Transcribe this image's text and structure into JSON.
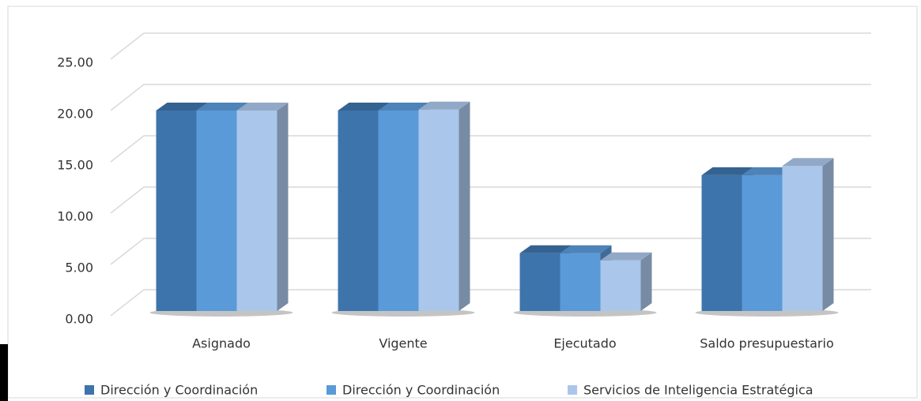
{
  "chart_data": {
    "type": "bar3d",
    "categories": [
      "Asignado",
      "Vigente",
      "Ejecutado",
      "Saldo presupuestario"
    ],
    "series": [
      {
        "name": "Dirección y Coordinación",
        "color": "#3d74ac",
        "values": [
          20.0,
          20.0,
          6.1,
          13.7
        ]
      },
      {
        "name": "Dirección y Coordinación",
        "color": "#5a9ad8",
        "values": [
          20.0,
          20.0,
          6.1,
          13.7
        ]
      },
      {
        "name": "Servicios de Inteligencia Estratégica",
        "color": "#aac6ea",
        "values": [
          20.0,
          20.1,
          5.4,
          14.6
        ]
      }
    ],
    "ylim": [
      0,
      25
    ],
    "yticks": [
      {
        "value": 0,
        "label": "0.00"
      },
      {
        "value": 5,
        "label": "5.00"
      },
      {
        "value": 10,
        "label": "10.00"
      },
      {
        "value": 15,
        "label": "15.00"
      },
      {
        "value": 20,
        "label": "20.00"
      },
      {
        "value": 25,
        "label": "25.00"
      }
    ],
    "grid": true,
    "legend": "bottom"
  }
}
